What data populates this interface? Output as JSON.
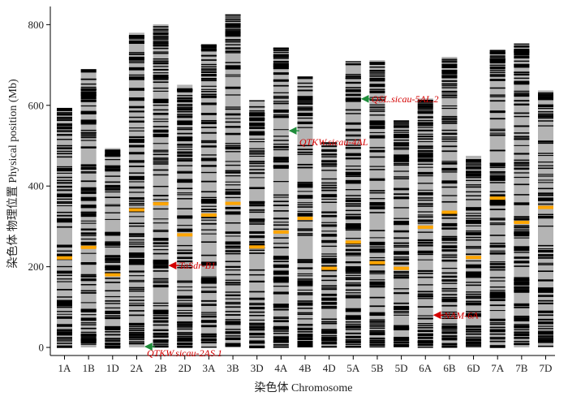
{
  "chart_data": {
    "type": "bar",
    "xlabel": "染色体 Chromosome",
    "ylabel": "染色体 物理位置 Physical position (Mb)",
    "ylim": [
      -20,
      845
    ],
    "yticks": [
      0,
      200,
      400,
      600,
      800
    ],
    "grid": false,
    "categories": [
      "1A",
      "1B",
      "1D",
      "2A",
      "2B",
      "2D",
      "3A",
      "3B",
      "3D",
      "4A",
      "4B",
      "4D",
      "5A",
      "5B",
      "5D",
      "6A",
      "6B",
      "6D",
      "7A",
      "7B",
      "7D"
    ],
    "lengths": [
      594,
      689,
      494,
      780,
      801,
      651,
      750,
      825,
      613,
      743,
      672,
      509,
      709,
      712,
      562,
      617,
      720,
      475,
      736,
      752,
      637
    ],
    "centromeres": [
      222,
      248,
      180,
      341,
      356,
      279,
      328,
      357,
      249,
      286,
      320,
      196,
      261,
      210,
      196,
      298,
      335,
      223,
      370,
      310,
      347
    ],
    "colors": {
      "chromosome": "#b4b4b4",
      "marker": "#000000",
      "centromere": "#ffa500",
      "arrow_red": "#d40000",
      "arrow_green": "#1e8c3a",
      "label": "#d40000"
    },
    "annotations": [
      {
        "label": "QSL.sicau-5AL.2",
        "chromosome": "5A",
        "position": 616,
        "arrow_color": "green"
      },
      {
        "label": "QTKW.sicau-4AL",
        "chromosome": "4A",
        "position": 537,
        "arrow_color": "green"
      },
      {
        "label": "TaSdr-B1",
        "chromosome": "2B",
        "position": 203,
        "arrow_color": "red"
      },
      {
        "label": "NAM-6A",
        "chromosome": "6A",
        "position": 80,
        "arrow_color": "red"
      },
      {
        "label": "QTKW.sicau-2AS.1",
        "chromosome": "2A",
        "position": 2,
        "arrow_color": "green"
      }
    ]
  }
}
